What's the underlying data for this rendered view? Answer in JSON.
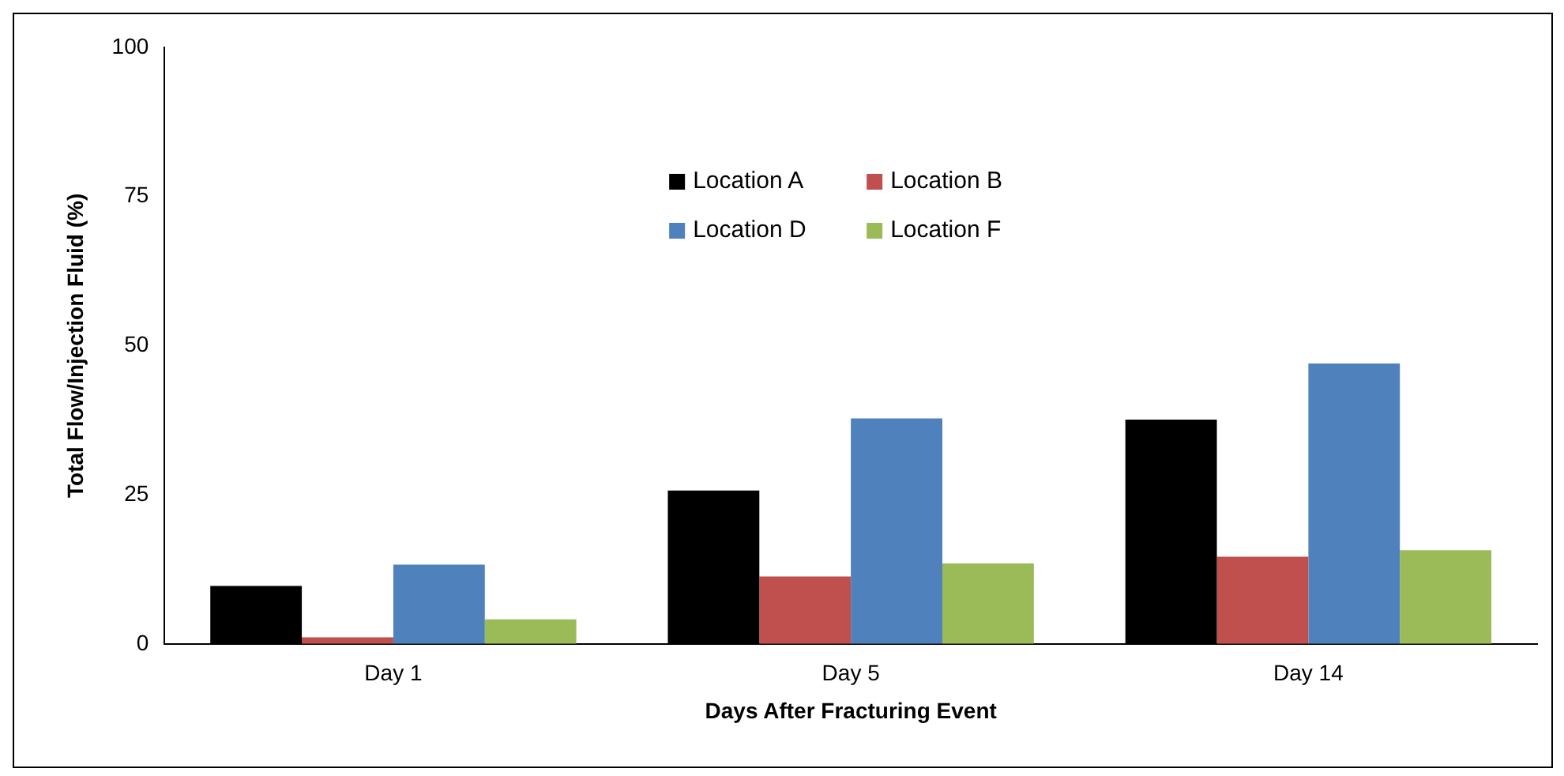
{
  "chart_data": {
    "type": "bar",
    "xlabel": "Days After Fracturing Event",
    "ylabel": "Total Flow/Injection Fluid (%)",
    "categories": [
      "Day 1",
      "Day 5",
      "Day 14"
    ],
    "series": [
      {
        "name": "Location A",
        "color": "#000000",
        "values": [
          9.7,
          25.7,
          37.6
        ]
      },
      {
        "name": "Location B",
        "color": "#c0504d",
        "values": [
          1.1,
          11.3,
          14.6
        ]
      },
      {
        "name": "Location D",
        "color": "#4f81bd",
        "values": [
          13.3,
          37.8,
          47.0
        ]
      },
      {
        "name": "Location F",
        "color": "#9bbb59",
        "values": [
          4.1,
          13.5,
          15.7
        ]
      }
    ],
    "ylim": [
      0,
      100
    ],
    "yticks": [
      0,
      25,
      50,
      75,
      100
    ],
    "grid": false,
    "legend": "top"
  }
}
